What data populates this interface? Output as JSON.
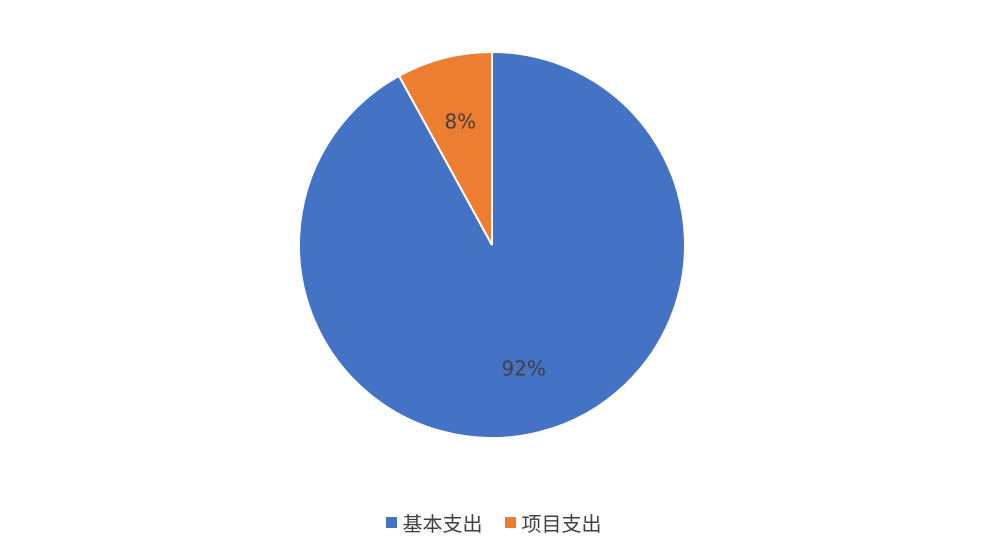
{
  "chart_data": {
    "type": "pie",
    "categories": [
      "基本支出",
      "项目支出"
    ],
    "values": [
      92,
      8
    ],
    "data_labels": [
      "92%",
      "8%"
    ],
    "colors": [
      "#4472C4",
      "#ED7D31"
    ],
    "start_angle": "12 o'clock",
    "direction": "clockwise",
    "legend_position": "bottom"
  }
}
